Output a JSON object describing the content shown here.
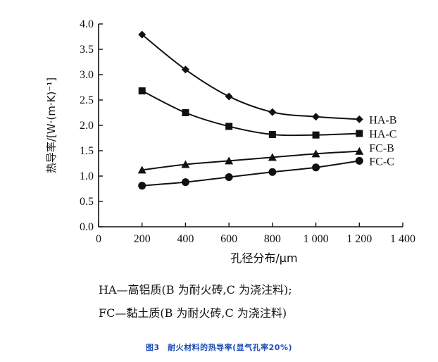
{
  "chart_data": {
    "type": "line",
    "ylabel": "热导率/[W·(m·K)⁻¹]",
    "xlabel": "孔径分布/μm",
    "xlim": [
      0,
      1400
    ],
    "ylim": [
      0.0,
      4.0
    ],
    "x_ticks": [
      0,
      200,
      400,
      600,
      800,
      1000,
      1200,
      1400
    ],
    "x_tick_labels": [
      "0",
      "200",
      "400",
      "600",
      "800",
      "1 000",
      "1 200",
      "1 400"
    ],
    "y_ticks": [
      0.0,
      0.5,
      1.0,
      1.5,
      2.0,
      2.5,
      3.0,
      3.5,
      4.0
    ],
    "y_tick_labels": [
      "0.0",
      "0.5",
      "1.0",
      "1.5",
      "2.0",
      "2.5",
      "3.0",
      "3.5",
      "4.0"
    ],
    "grid": false,
    "x": [
      200,
      400,
      600,
      800,
      1000,
      1200
    ],
    "series": [
      {
        "name": "HA-B",
        "marker": "diamond",
        "values": [
          3.79,
          3.1,
          2.57,
          2.26,
          2.17,
          2.12
        ]
      },
      {
        "name": "HA-C",
        "marker": "square",
        "values": [
          2.68,
          2.25,
          1.98,
          1.82,
          1.81,
          1.84
        ]
      },
      {
        "name": "FC-B",
        "marker": "triangle",
        "values": [
          1.12,
          1.23,
          1.3,
          1.37,
          1.44,
          1.49
        ]
      },
      {
        "name": "FC-C",
        "marker": "circle",
        "values": [
          0.81,
          0.88,
          0.98,
          1.08,
          1.17,
          1.3
        ]
      }
    ]
  },
  "notes": [
    "HA—高铝质(B 为耐火砖,C 为浇注料);",
    "FC—黏土质(B 为耐火砖,C 为浇注料)"
  ],
  "caption": "图3　耐火材料的热导率(显气孔率20%)"
}
